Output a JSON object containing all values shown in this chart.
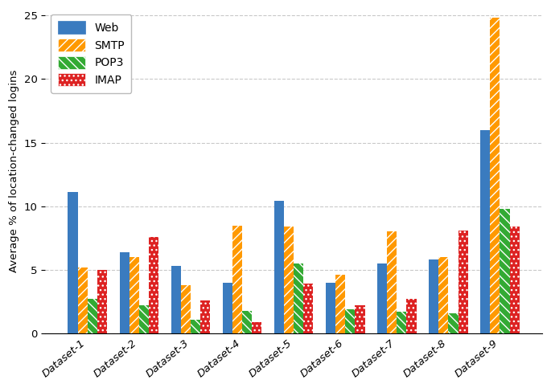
{
  "datasets": [
    "Dataset-1",
    "Dataset-2",
    "Dataset-3",
    "Dataset-4",
    "Dataset-5",
    "Dataset-6",
    "Dataset-7",
    "Dataset-8",
    "Dataset-9"
  ],
  "series": {
    "Web": [
      11.1,
      6.4,
      5.3,
      4.0,
      10.4,
      4.0,
      5.5,
      5.8,
      16.0
    ],
    "SMTP": [
      5.2,
      6.0,
      3.8,
      8.5,
      8.4,
      4.6,
      8.0,
      6.0,
      24.8
    ],
    "POP3": [
      2.7,
      2.2,
      1.1,
      1.8,
      5.5,
      1.9,
      1.7,
      1.6,
      9.8
    ],
    "IMAP": [
      5.0,
      7.6,
      2.6,
      0.9,
      3.9,
      2.2,
      2.7,
      8.1,
      8.4
    ]
  },
  "colors": {
    "Web": "#3a7bbf",
    "SMTP": "#ff9900",
    "POP3": "#33aa33",
    "IMAP": "#dd2222"
  },
  "hatch": {
    "Web": "",
    "SMTP": "///",
    "POP3": "\\\\\\",
    "IMAP": "..."
  },
  "ylabel": "Average % of location-changed logins",
  "ylim": [
    0,
    25.5
  ],
  "yticks": [
    0,
    5,
    10,
    15,
    20,
    25
  ],
  "bar_width": 0.19,
  "legend_order": [
    "Web",
    "SMTP",
    "POP3",
    "IMAP"
  ],
  "grid_linestyle": "--",
  "grid_color": "#bbbbbb",
  "figsize": [
    6.85,
    4.83
  ],
  "dpi": 100
}
